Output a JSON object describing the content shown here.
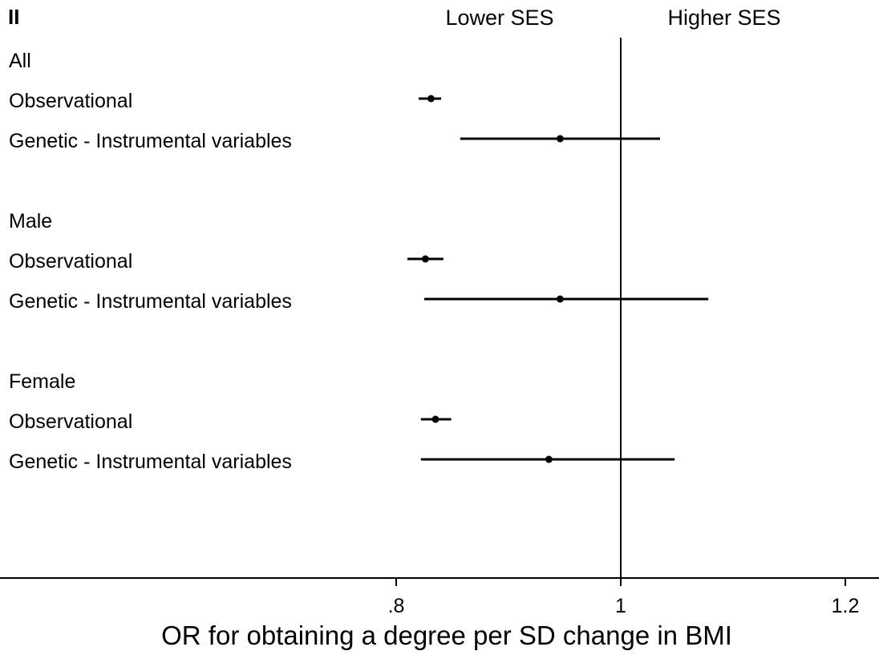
{
  "chart_data": {
    "type": "forest",
    "panel_label": "II",
    "direction_labels": {
      "left": "Lower SES",
      "right": "Higher SES"
    },
    "xlabel": "OR for obtaining a degree per SD change in BMI",
    "xlim": [
      0.6,
      1.23
    ],
    "x_ticks": [
      0.8,
      1.0,
      1.2
    ],
    "x_tick_labels": [
      ".8",
      "1",
      "1.2"
    ],
    "reference_line": 1.0,
    "groups": [
      {
        "label": "All",
        "rows": [
          {
            "label": "Observational",
            "estimate": 0.831,
            "lower": 0.82,
            "upper": 0.84
          },
          {
            "label": "Genetic - Instrumental variables",
            "estimate": 0.946,
            "lower": 0.857,
            "upper": 1.035
          }
        ]
      },
      {
        "label": "Male",
        "rows": [
          {
            "label": "Observational",
            "estimate": 0.826,
            "lower": 0.81,
            "upper": 0.842
          },
          {
            "label": "Genetic - Instrumental variables",
            "estimate": 0.946,
            "lower": 0.825,
            "upper": 1.078
          }
        ]
      },
      {
        "label": "Female",
        "rows": [
          {
            "label": "Observational",
            "estimate": 0.835,
            "lower": 0.822,
            "upper": 0.849
          },
          {
            "label": "Genetic - Instrumental variables",
            "estimate": 0.936,
            "lower": 0.822,
            "upper": 1.048
          }
        ]
      }
    ],
    "marker_color": "#000000",
    "line_color": "#000000",
    "grid": false
  }
}
